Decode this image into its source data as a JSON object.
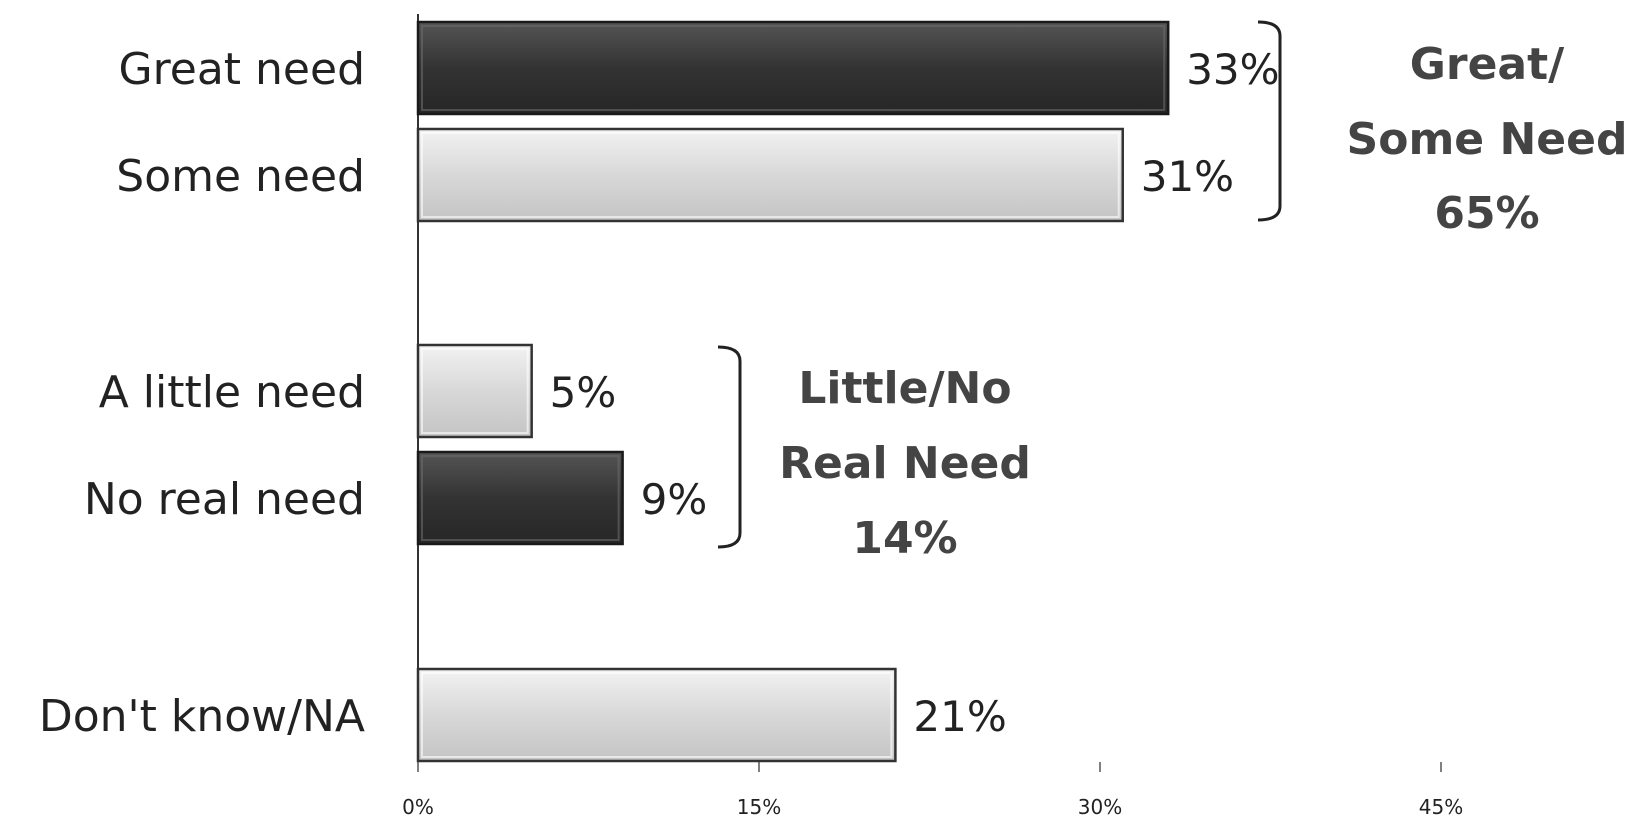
{
  "chart_data": {
    "type": "bar",
    "orientation": "horizontal",
    "categories": [
      "Great need",
      "Some need",
      "A little need",
      "No real need",
      "Don't know/NA"
    ],
    "values": [
      33,
      31,
      5,
      9,
      21
    ],
    "value_labels": [
      "33%",
      "31%",
      "5%",
      "9%",
      "21%"
    ],
    "bar_shades": [
      "dark",
      "light",
      "light",
      "dark",
      "light"
    ],
    "xlim": [
      0,
      45
    ],
    "ticks": [
      0,
      15,
      30,
      45
    ],
    "tick_labels": [
      "0%",
      "15%",
      "30%",
      "45%"
    ],
    "grid": false,
    "colors": {
      "dark": "#3a3a3a",
      "light": "#dcdcdc"
    },
    "groups": [
      {
        "categories": [
          "Great need",
          "Some need"
        ],
        "label_lines": [
          "Great/",
          "Some Need",
          "65%"
        ]
      },
      {
        "categories": [
          "A little need",
          "No real need"
        ],
        "label_lines": [
          "Little/No",
          "Real Need",
          "14%"
        ]
      }
    ]
  }
}
